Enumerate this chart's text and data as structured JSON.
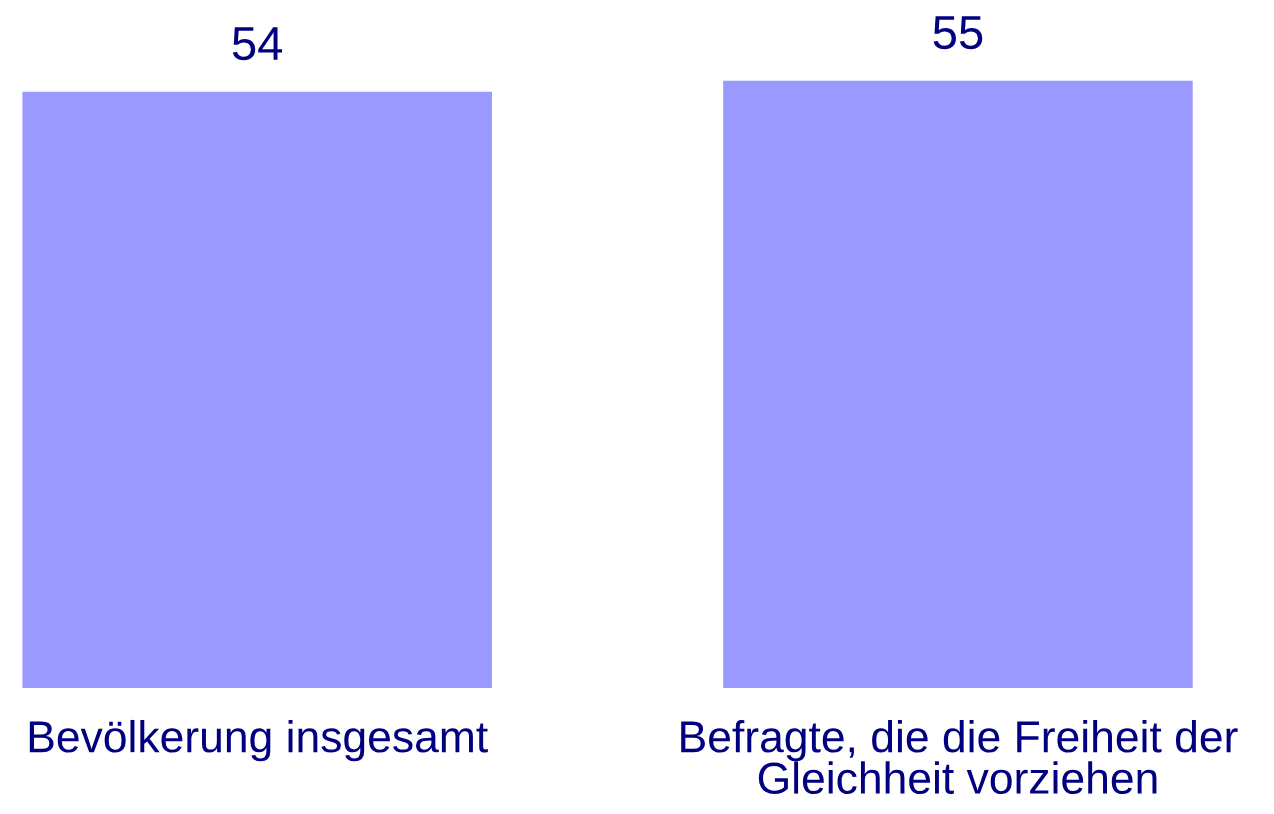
{
  "chart_data": {
    "type": "bar",
    "categories": [
      "Bevölkerung insgesamt",
      "Befragte, die die Freiheit der Gleichheit vorziehen"
    ],
    "values": [
      54,
      55
    ],
    "color": "#9999ff",
    "data_labels": true,
    "tick_labels": "x"
  }
}
